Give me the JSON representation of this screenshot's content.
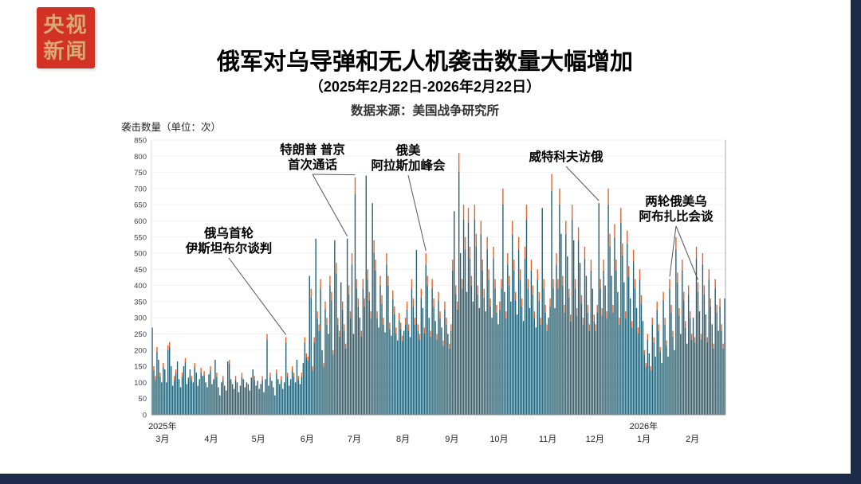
{
  "page": {
    "bg": "#ffffff",
    "border_color": "#1c2b4a"
  },
  "logo": {
    "line1": "央视",
    "line2": "新闻",
    "bg": "#d23226",
    "fg": "#d9a873"
  },
  "header": {
    "title": "俄军对乌导弹和无人机袭击数量大幅增加",
    "subtitle": "（2025年2月22日-2026年2月22日）",
    "source": "数据来源：美国战争研究所"
  },
  "chart_data": {
    "type": "bar",
    "title": "俄军对乌导弹和无人机袭击数量大幅增加",
    "subtitle": "（2025年2月22日-2026年2月22日）",
    "source": "数据来源：美国战争研究所",
    "ylabel": "袭击数量（单位：次）",
    "xlabel": "",
    "ylim": [
      0,
      850
    ],
    "y_tick_step": 50,
    "grid": false,
    "legend": "none",
    "bar_color": "#276072",
    "tip_color": "#e4642c",
    "tip_fraction": 0.07,
    "tip_threshold": 120,
    "x_ticks": [
      {
        "year": "2025年",
        "month": "3月",
        "index": 7
      },
      {
        "month": "4月",
        "index": 38
      },
      {
        "month": "5月",
        "index": 68
      },
      {
        "month": "6月",
        "index": 99
      },
      {
        "month": "7月",
        "index": 129
      },
      {
        "month": "8月",
        "index": 160
      },
      {
        "month": "9月",
        "index": 191
      },
      {
        "month": "10月",
        "index": 221
      },
      {
        "month": "11月",
        "index": 252
      },
      {
        "month": "12月",
        "index": 282
      },
      {
        "year": "2026年",
        "month": "1月",
        "index": 313
      },
      {
        "month": "2月",
        "index": 344
      }
    ],
    "annotations": [
      {
        "lines": [
          "俄乌首轮",
          "伊斯坦布尔谈判"
        ],
        "x": 137,
        "y": 150,
        "anchors": [
          85
        ]
      },
      {
        "lines": [
          "特朗普 普京",
          "首次通话"
        ],
        "x": 242,
        "y": 45,
        "anchors": [
          124,
          129
        ]
      },
      {
        "lines": [
          "俄美",
          "阿拉斯加峰会"
        ],
        "x": 362,
        "y": 46,
        "anchors": [
          174
        ]
      },
      {
        "lines": [
          "威特科夫访俄"
        ],
        "x": 560,
        "y": 54,
        "anchors": [
          284
        ]
      },
      {
        "lines": [
          "两轮俄美乌",
          "阿布扎比会谈"
        ],
        "x": 698,
        "y": 110,
        "anchors": [
          329,
          347
        ]
      }
    ],
    "values": [
      270,
      150,
      120,
      210,
      170,
      130,
      100,
      160,
      140,
      100,
      215,
      225,
      150,
      90,
      120,
      140,
      165,
      110,
      85,
      130,
      150,
      175,
      95,
      115,
      140,
      120,
      100,
      160,
      130,
      90,
      110,
      145,
      120,
      135,
      100,
      85,
      125,
      150,
      95,
      110,
      170,
      130,
      85,
      60,
      100,
      120,
      90,
      75,
      165,
      170,
      110,
      95,
      80,
      120,
      100,
      70,
      90,
      130,
      110,
      85,
      100,
      95,
      75,
      115,
      140,
      120,
      90,
      105,
      80,
      95,
      120,
      70,
      110,
      250,
      90,
      130,
      105,
      85,
      60,
      140,
      110,
      95,
      120,
      80,
      100,
      240,
      130,
      90,
      110,
      150,
      130,
      100,
      170,
      120,
      95,
      130,
      160,
      240,
      190,
      180,
      430,
      390,
      150,
      240,
      545,
      320,
      280,
      420,
      200,
      160,
      350,
      300,
      250,
      430,
      380,
      200,
      540,
      470,
      300,
      260,
      410,
      350,
      280,
      220,
      545,
      400,
      320,
      500,
      250,
      735,
      420,
      360,
      300,
      260,
      420,
      360,
      740,
      450,
      380,
      320,
      655,
      540,
      480,
      320,
      270,
      430,
      370,
      300,
      255,
      500,
      430,
      285,
      245,
      385,
      335,
      270,
      230,
      315,
      285,
      245,
      260,
      300,
      350,
      280,
      240,
      420,
      360,
      300,
      510,
      280,
      250,
      390,
      330,
      270,
      500,
      430,
      300,
      260,
      420,
      360,
      290,
      250,
      380,
      320,
      270,
      230,
      350,
      300,
      250,
      220,
      280,
      480,
      630,
      400,
      350,
      810,
      500,
      420,
      650,
      550,
      380,
      640,
      520,
      430,
      350,
      650,
      560,
      400,
      330,
      600,
      480,
      390,
      320,
      550,
      450,
      360,
      300,
      520,
      420,
      340,
      280,
      350,
      420,
      700,
      380,
      320,
      500,
      430,
      350,
      600,
      480,
      380,
      310,
      550,
      450,
      360,
      290,
      520,
      650,
      420,
      330,
      480,
      400,
      320,
      270,
      450,
      380,
      300,
      640,
      420,
      340,
      280,
      300,
      360,
      745,
      420,
      330,
      500,
      420,
      700,
      560,
      430,
      340,
      600,
      490,
      390,
      310,
      650,
      540,
      420,
      330,
      580,
      470,
      370,
      300,
      520,
      430,
      340,
      280,
      480,
      390,
      310,
      280,
      340,
      655,
      420,
      330,
      480,
      400,
      320,
      700,
      560,
      430,
      340,
      590,
      480,
      380,
      300,
      640,
      530,
      410,
      320,
      570,
      460,
      360,
      290,
      510,
      420,
      330,
      270,
      450,
      370,
      290,
      200,
      160,
      250,
      190,
      150,
      300,
      240,
      180,
      350,
      280,
      210,
      160,
      380,
      300,
      230,
      180,
      420,
      340,
      260,
      200,
      550,
      440,
      330,
      250,
      480,
      380,
      290,
      220,
      400,
      320,
      250,
      300,
      240,
      520,
      410,
      320,
      250,
      500,
      400,
      310,
      240,
      450,
      360,
      280,
      220,
      420,
      340,
      260,
      360,
      280,
      220,
      360
    ]
  }
}
